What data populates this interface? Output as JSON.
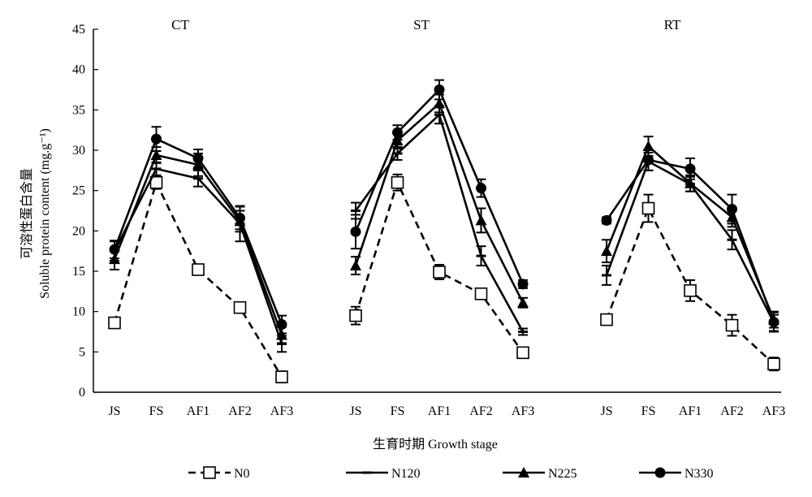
{
  "chart_data": {
    "type": "line",
    "ylabel_zh": "可溶性蛋白含量",
    "ylabel_en": "Soluble protein content (mg.g⁻¹)",
    "xlabel": "生育时期  Growth stage",
    "ylim": [
      0,
      45
    ],
    "yticks": [
      0,
      5,
      10,
      15,
      20,
      25,
      30,
      35,
      40,
      45
    ],
    "categories": [
      "JS",
      "FS",
      "AF1",
      "AF2",
      "AF3"
    ],
    "legend_position": "bottom",
    "groups": [
      {
        "title": "CT",
        "series": [
          {
            "name": "N0",
            "values": [
              8.6,
              26.0,
              15.2,
              10.5,
              1.9
            ],
            "errors": [
              0.6,
              0.8,
              0.4,
              0.6,
              0.7
            ]
          },
          {
            "name": "N120",
            "values": [
              17.5,
              27.7,
              26.5,
              20.9,
              6.0
            ],
            "errors": [
              1.2,
              0.8,
              1.0,
              2.2,
              1.0
            ]
          },
          {
            "name": "N225",
            "values": [
              16.5,
              29.4,
              28.2,
              21.2,
              7.1
            ],
            "errors": [
              1.3,
              1.0,
              1.4,
              1.3,
              1.0
            ]
          },
          {
            "name": "N330",
            "values": [
              17.7,
              31.4,
              29.0,
              21.6,
              8.4
            ],
            "errors": [
              1.1,
              1.5,
              1.1,
              1.4,
              1.1
            ]
          }
        ]
      },
      {
        "title": "ST",
        "series": [
          {
            "name": "N0",
            "values": [
              9.5,
              26.0,
              14.9,
              12.2,
              4.9
            ],
            "errors": [
              1.1,
              1.0,
              0.9,
              0.4,
              0.6
            ]
          },
          {
            "name": "N120",
            "values": [
              22.5,
              29.6,
              34.4,
              16.9,
              7.5
            ],
            "errors": [
              1.0,
              0.8,
              1.1,
              1.2,
              0.4
            ]
          },
          {
            "name": "N225",
            "values": [
              15.7,
              31.2,
              35.8,
              21.3,
              11.1
            ],
            "errors": [
              1.1,
              1.0,
              1.1,
              1.5,
              0.6
            ]
          },
          {
            "name": "N330",
            "values": [
              19.9,
              32.2,
              37.5,
              25.3,
              13.4
            ],
            "errors": [
              2.1,
              0.9,
              1.2,
              1.1,
              0.5
            ]
          }
        ]
      },
      {
        "title": "RT",
        "series": [
          {
            "name": "N0",
            "values": [
              9.0,
              22.8,
              12.6,
              8.3,
              3.5
            ],
            "errors": [
              0.4,
              1.7,
              1.3,
              1.3,
              0.8
            ]
          },
          {
            "name": "N120",
            "values": [
              14.5,
              28.6,
              25.8,
              18.9,
              8.6
            ],
            "errors": [
              1.2,
              1.1,
              0.9,
              1.2,
              1.0
            ]
          },
          {
            "name": "N225",
            "values": [
              17.5,
              30.5,
              25.9,
              21.7,
              9.0
            ],
            "errors": [
              1.4,
              1.2,
              1.0,
              1.2,
              1.0
            ]
          },
          {
            "name": "N330",
            "values": [
              21.3,
              28.8,
              27.7,
              22.7,
              8.7
            ],
            "errors": [
              0.4,
              1.3,
              1.3,
              1.8,
              1.2
            ]
          }
        ]
      }
    ],
    "series_styles": [
      {
        "name": "N0",
        "line": "dashed",
        "marker": "open-square"
      },
      {
        "name": "N120",
        "line": "solid",
        "marker": "dash"
      },
      {
        "name": "N225",
        "line": "solid",
        "marker": "filled-triangle"
      },
      {
        "name": "N330",
        "line": "solid",
        "marker": "filled-circle"
      }
    ],
    "colors": {
      "line": "#000000",
      "background": "#ffffff"
    }
  }
}
